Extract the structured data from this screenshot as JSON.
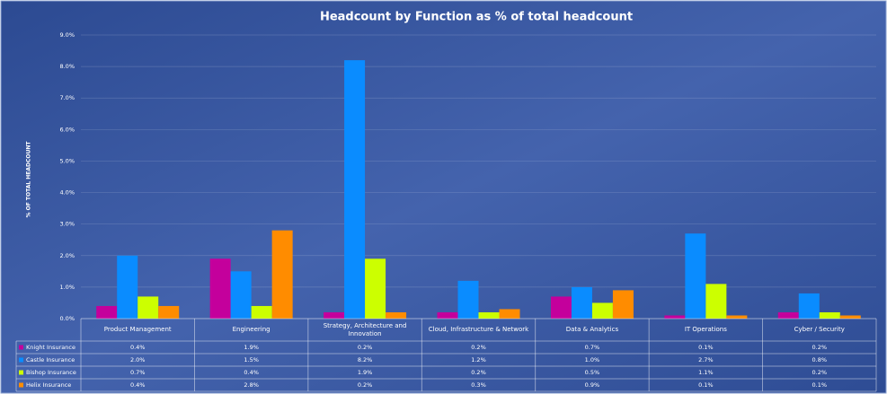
{
  "chart_data": {
    "type": "bar",
    "title": "Headcount by Function as % of total headcount",
    "y_label": "% OF TOTAL HEADCOUNT",
    "categories": [
      "Product Management",
      "Engineering",
      "Strategy, Architecture and Innovation",
      "Cloud, Infrastructure & Network",
      "Data & Analytics",
      "IT Operations",
      "Cyber / Security"
    ],
    "series": [
      {
        "name": "Knight Insurance",
        "color": "#c4009c",
        "values": [
          0.4,
          1.9,
          0.2,
          0.2,
          0.7,
          0.1,
          0.2
        ],
        "value_labels": [
          "0.4%",
          "1.9%",
          "0.2%",
          "0.2%",
          "0.7%",
          "0.1%",
          "0.2%"
        ]
      },
      {
        "name": "Castle Insurance",
        "color": "#0a8cff",
        "values": [
          2.0,
          1.5,
          8.2,
          1.2,
          1.0,
          2.7,
          0.8
        ],
        "value_labels": [
          "2.0%",
          "1.5%",
          "8.2%",
          "1.2%",
          "1.0%",
          "2.7%",
          "0.8%"
        ]
      },
      {
        "name": "Bishop Insurance",
        "color": "#ccff00",
        "values": [
          0.7,
          0.4,
          1.9,
          0.2,
          0.5,
          1.1,
          0.2
        ],
        "value_labels": [
          "0.7%",
          "0.4%",
          "1.9%",
          "0.2%",
          "0.5%",
          "1.1%",
          "0.2%"
        ]
      },
      {
        "name": "Helix Insurance",
        "color": "#ff8c00",
        "values": [
          0.4,
          2.8,
          0.2,
          0.3,
          0.9,
          0.1,
          0.1
        ],
        "value_labels": [
          "0.4%",
          "2.8%",
          "0.2%",
          "0.3%",
          "0.9%",
          "0.1%",
          "0.1%"
        ]
      }
    ],
    "ylim": [
      0,
      9
    ],
    "yticks": [
      {
        "value": 0,
        "label": "0.0%"
      },
      {
        "value": 1,
        "label": "1.0%"
      },
      {
        "value": 2,
        "label": "2.0%"
      },
      {
        "value": 3,
        "label": "3.0%"
      },
      {
        "value": 4,
        "label": "4.0%"
      },
      {
        "value": 5,
        "label": "5.0%"
      },
      {
        "value": 6,
        "label": "6.0%"
      },
      {
        "value": 7,
        "label": "7.0%"
      },
      {
        "value": 8,
        "label": "8.0%"
      },
      {
        "value": 9,
        "label": "9.0%"
      }
    ],
    "grid": true
  }
}
